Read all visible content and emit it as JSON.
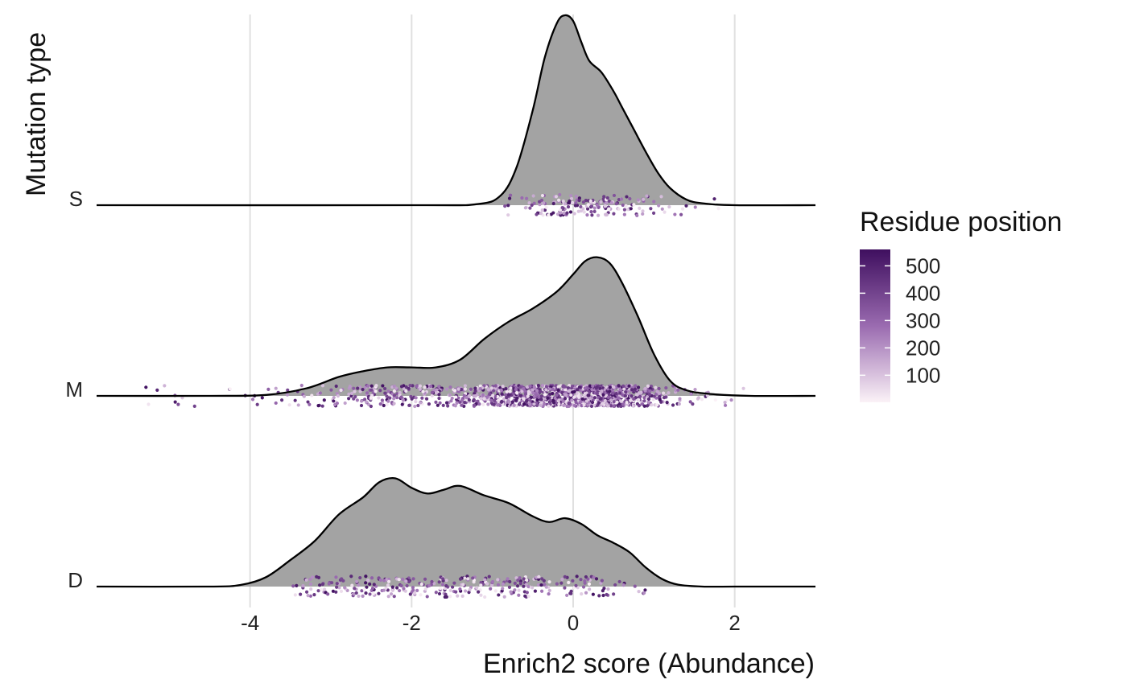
{
  "chart_data": {
    "type": "ridgeline",
    "xlabel": "Enrich2 score (Abundance)",
    "ylabel": "Mutation type",
    "xlim": [
      -5.9,
      3.0
    ],
    "x_ticks": [
      -4,
      -2,
      0,
      2
    ],
    "x_tick_labels": [
      "-4",
      "-2",
      "0",
      "2"
    ],
    "grid": "vertical major gridlines",
    "fill_color": "#a3a3a3",
    "outline_color": "#000000",
    "categories": [
      "S",
      "M",
      "D"
    ],
    "series": [
      {
        "name": "S",
        "n_points": 180,
        "points_x_range": [
          -0.9,
          1.8
        ],
        "density": {
          "x": [
            -5.9,
            -2.0,
            -1.2,
            -0.9,
            -0.7,
            -0.5,
            -0.35,
            -0.2,
            -0.1,
            0.0,
            0.1,
            0.2,
            0.35,
            0.5,
            0.6,
            0.75,
            0.9,
            1.05,
            1.2,
            1.4,
            1.6,
            2.0,
            3.0
          ],
          "y": [
            0.0,
            0.0,
            0.005,
            0.05,
            0.2,
            0.5,
            0.78,
            0.96,
            1.0,
            0.97,
            0.86,
            0.76,
            0.7,
            0.6,
            0.52,
            0.4,
            0.28,
            0.17,
            0.09,
            0.03,
            0.01,
            0.0,
            0.0
          ]
        }
      },
      {
        "name": "M",
        "n_points": 1400,
        "points_x_range": [
          -5.3,
          2.4
        ],
        "density": {
          "x": [
            -5.9,
            -4.5,
            -3.8,
            -3.3,
            -2.9,
            -2.6,
            -2.3,
            -2.0,
            -1.7,
            -1.4,
            -1.1,
            -0.8,
            -0.5,
            -0.2,
            0.0,
            0.15,
            0.3,
            0.45,
            0.6,
            0.8,
            1.0,
            1.2,
            1.4,
            1.7,
            2.2,
            3.0
          ],
          "y": [
            0.0,
            0.0,
            0.005,
            0.04,
            0.1,
            0.13,
            0.15,
            0.15,
            0.15,
            0.19,
            0.3,
            0.39,
            0.46,
            0.55,
            0.64,
            0.71,
            0.73,
            0.7,
            0.6,
            0.42,
            0.22,
            0.08,
            0.03,
            0.01,
            0.0,
            0.0
          ]
        }
      },
      {
        "name": "D",
        "n_points": 320,
        "points_x_range": [
          -3.9,
          1.0
        ],
        "density": {
          "x": [
            -5.9,
            -4.5,
            -4.1,
            -3.8,
            -3.5,
            -3.2,
            -2.9,
            -2.6,
            -2.4,
            -2.2,
            -2.0,
            -1.8,
            -1.6,
            -1.4,
            -1.1,
            -0.8,
            -0.5,
            -0.3,
            -0.1,
            0.1,
            0.3,
            0.5,
            0.7,
            0.9,
            1.1,
            1.3,
            1.6,
            2.0,
            3.0
          ],
          "y": [
            0.0,
            0.0,
            0.01,
            0.05,
            0.14,
            0.24,
            0.38,
            0.47,
            0.55,
            0.57,
            0.52,
            0.49,
            0.51,
            0.53,
            0.48,
            0.44,
            0.37,
            0.34,
            0.36,
            0.33,
            0.27,
            0.23,
            0.18,
            0.1,
            0.04,
            0.01,
            0.0,
            0.0,
            0.0
          ]
        }
      }
    ],
    "color_scale": {
      "title": "Residue position",
      "ticks": [
        100,
        200,
        300,
        400,
        500
      ],
      "tick_labels": [
        "100",
        "200",
        "300",
        "400",
        "500"
      ],
      "range": [
        1,
        560
      ],
      "low_color": "#fbf2f7",
      "mid_color": "#9a6bb0",
      "high_color": "#3f0f5f"
    }
  }
}
